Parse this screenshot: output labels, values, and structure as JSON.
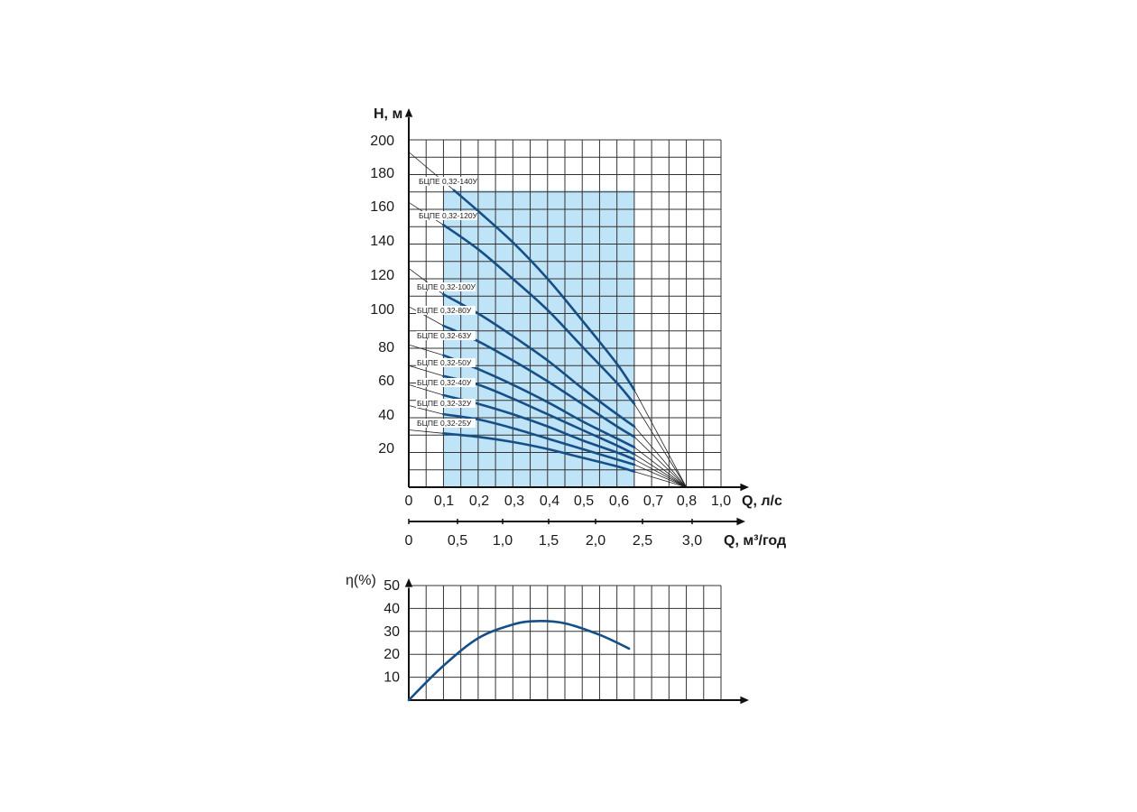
{
  "colors": {
    "curve": "#164f86",
    "band": "#bfe3f7",
    "grid": "#333333",
    "axis": "#111111",
    "guide": "#222222"
  },
  "chart_data": [
    {
      "type": "line",
      "ylabel": "H, м",
      "xlabel": "Q, л/с",
      "xlabel2": "Q, м³/год",
      "xlim": [
        0,
        1.0
      ],
      "ylim": [
        0,
        200
      ],
      "x_ticks": [
        "0",
        "0,1",
        "0,2",
        "0,3",
        "0,4",
        "0,5",
        "0,6",
        "0,7",
        "0,8",
        "1,0"
      ],
      "y_ticks": [
        "20",
        "40",
        "60",
        "80",
        "100",
        "120",
        "140",
        "160",
        "180",
        "200"
      ],
      "x2_ticks": [
        "0",
        "0,5",
        "1,0",
        "1,5",
        "2,0",
        "2,5",
        "3,0"
      ],
      "grid": true,
      "working_range": [
        0.1,
        0.65
      ],
      "shutoff_point": [
        0.8,
        0
      ],
      "series": [
        {
          "name": "БЦПЕ 0,32-140У",
          "shutoff": 193,
          "x": [
            0.13,
            0.2,
            0.3,
            0.4,
            0.5,
            0.6,
            0.65
          ],
          "y": [
            171,
            159,
            141,
            120,
            96,
            71,
            56
          ]
        },
        {
          "name": "БЦПЕ 0,32-120У",
          "shutoff": 164,
          "x": [
            0.1,
            0.2,
            0.3,
            0.4,
            0.5,
            0.6,
            0.65
          ],
          "y": [
            151,
            137,
            120,
            102,
            81,
            60,
            48
          ]
        },
        {
          "name": "БЦПЕ 0,32-100У",
          "shutoff": 126,
          "x": [
            0.1,
            0.2,
            0.3,
            0.4,
            0.5,
            0.6,
            0.65
          ],
          "y": [
            111,
            100,
            87,
            73,
            57,
            42,
            35
          ]
        },
        {
          "name": "БЦПЕ 0,32-80У",
          "shutoff": 104,
          "x": [
            0.1,
            0.2,
            0.3,
            0.4,
            0.5,
            0.6,
            0.65
          ],
          "y": [
            93,
            84,
            73,
            61,
            48,
            35,
            29
          ]
        },
        {
          "name": "БЦПЕ 0,32-63У",
          "shutoff": 82,
          "x": [
            0.1,
            0.2,
            0.3,
            0.4,
            0.5,
            0.6,
            0.65
          ],
          "y": [
            76,
            68,
            59,
            49,
            38,
            28,
            23
          ]
        },
        {
          "name": "БЦПЕ 0,32-50У",
          "shutoff": 70,
          "x": [
            0.1,
            0.2,
            0.3,
            0.4,
            0.5,
            0.6,
            0.65
          ],
          "y": [
            64,
            59,
            51,
            42,
            33,
            24,
            19
          ]
        },
        {
          "name": "БЦПЕ 0,32-40У",
          "shutoff": 59,
          "x": [
            0.1,
            0.2,
            0.3,
            0.4,
            0.5,
            0.6,
            0.65
          ],
          "y": [
            53,
            48,
            42,
            35,
            27,
            20,
            16
          ]
        },
        {
          "name": "БЦПЕ 0,32-32У",
          "shutoff": 47,
          "x": [
            0.1,
            0.2,
            0.3,
            0.4,
            0.5,
            0.6,
            0.65
          ],
          "y": [
            42,
            39,
            34,
            28,
            22,
            16,
            13
          ]
        },
        {
          "name": "БЦПЕ 0,32-25У",
          "shutoff": 33,
          "x": [
            0.1,
            0.2,
            0.3,
            0.4,
            0.5,
            0.6,
            0.65
          ],
          "y": [
            31,
            29,
            26,
            22,
            17,
            12,
            9
          ]
        }
      ]
    },
    {
      "type": "line",
      "ylabel": "η(%)",
      "xlim": [
        0,
        1.0
      ],
      "ylim": [
        0,
        50
      ],
      "y_ticks": [
        "10",
        "20",
        "30",
        "40",
        "50"
      ],
      "grid": true,
      "series": [
        {
          "x": [
            0,
            0.1,
            0.2,
            0.3,
            0.37,
            0.45,
            0.55,
            0.635
          ],
          "y": [
            0,
            15,
            27,
            33,
            34.5,
            33.5,
            28.5,
            22.5
          ]
        }
      ]
    }
  ]
}
